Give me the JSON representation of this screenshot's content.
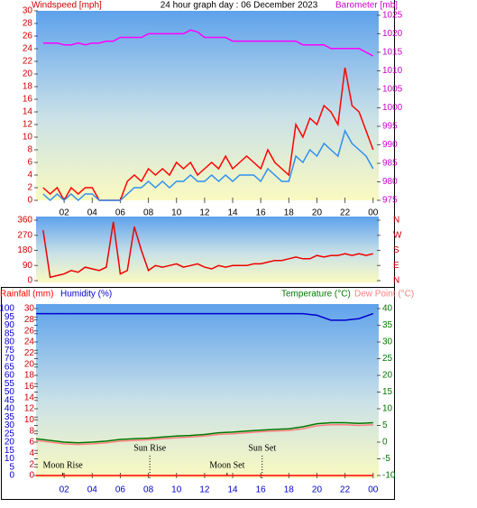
{
  "chart_data": [
    {
      "type": "line",
      "title": "24 hour graph day : 06 December 2023",
      "y_label": "Windspeed [mph]",
      "y2_label": "Barometer [mb]",
      "x": [
        0.5,
        1,
        1.5,
        2,
        2.5,
        3,
        3.5,
        4,
        4.5,
        5,
        5.5,
        6,
        6.5,
        7,
        7.5,
        8,
        8.5,
        9,
        9.5,
        10,
        10.5,
        11,
        11.5,
        12,
        12.5,
        13,
        13.5,
        14,
        14.5,
        15,
        15.5,
        16,
        16.5,
        17,
        17.5,
        18,
        18.5,
        19,
        19.5,
        20,
        20.5,
        21,
        21.5,
        22,
        22.5,
        23,
        23.5,
        24
      ],
      "xlim": [
        0,
        24.4
      ],
      "xticks": [
        {
          "value": 2,
          "label": "02"
        },
        {
          "value": 4,
          "label": "04"
        },
        {
          "value": 6,
          "label": "06"
        },
        {
          "value": 8,
          "label": "08"
        },
        10,
        12,
        14,
        16,
        18,
        20,
        22,
        {
          "value": 24,
          "label": "00"
        }
      ],
      "ylim": [
        0,
        30
      ],
      "yticks": [
        0,
        2,
        4,
        6,
        8,
        10,
        12,
        14,
        16,
        18,
        20,
        22,
        24,
        26,
        28,
        30
      ],
      "y2lim": [
        975,
        1026.2
      ],
      "y2ticks": [
        975,
        980,
        985,
        990,
        995,
        1000,
        1005,
        1010,
        1015,
        1020,
        1025
      ],
      "series": [
        {
          "color": "#ff0000",
          "values": [
            2,
            1,
            2,
            0,
            2,
            1,
            2,
            2,
            0,
            0,
            0,
            0,
            3,
            4,
            3,
            5,
            4,
            5,
            4,
            6,
            5,
            6,
            4,
            5,
            6,
            5,
            7,
            5,
            6,
            7,
            6,
            5,
            8,
            6,
            5,
            4,
            12,
            10,
            13,
            12,
            15,
            14,
            12,
            21,
            15,
            14,
            11,
            8
          ]
        },
        {
          "color": "#2f8ff0",
          "values": [
            1,
            0,
            1,
            0,
            1,
            0,
            1,
            1,
            0,
            0,
            0,
            0,
            1,
            2,
            2,
            3,
            2,
            3,
            2,
            3,
            3,
            4,
            3,
            3,
            4,
            3,
            4,
            3,
            4,
            4,
            4,
            3,
            5,
            4,
            3,
            3,
            7,
            6,
            8,
            7,
            9,
            8,
            7,
            11,
            9,
            8,
            7,
            5
          ]
        },
        {
          "color": "#ff00ff",
          "axis": "y2",
          "values": [
            1017.5,
            1017.5,
            1017.5,
            1017,
            1017,
            1017.5,
            1017,
            1017.5,
            1017.5,
            1018,
            1018,
            1019,
            1019,
            1019,
            1019,
            1020,
            1020,
            1020,
            1020,
            1020,
            1020,
            1021,
            1020.5,
            1019,
            1019,
            1019,
            1019,
            1018,
            1018,
            1018,
            1018,
            1018,
            1018,
            1018,
            1018,
            1018,
            1018,
            1017,
            1017,
            1017,
            1017,
            1016,
            1016,
            1016,
            1016,
            1016,
            1015,
            1014
          ]
        }
      ]
    },
    {
      "type": "line",
      "x": [
        0.5,
        1,
        1.5,
        2,
        2.5,
        3,
        3.5,
        4,
        4.5,
        5,
        5.5,
        6,
        6.5,
        7,
        7.5,
        8,
        8.5,
        9,
        9.5,
        10,
        10.5,
        11,
        11.5,
        12,
        12.5,
        13,
        13.5,
        14,
        14.5,
        15,
        15.5,
        16,
        16.5,
        17,
        17.5,
        18,
        18.5,
        19,
        19.5,
        20,
        20.5,
        21,
        21.5,
        22,
        22.5,
        23,
        23.5,
        24
      ],
      "xlim": [
        0,
        24.4
      ],
      "ylim": [
        0,
        360
      ],
      "yticks": [
        0,
        90,
        180,
        270,
        360
      ],
      "y2lim": [
        0,
        360
      ],
      "y2ticks": [
        {
          "value": 0,
          "label": "N"
        },
        {
          "value": 90,
          "label": "E"
        },
        {
          "value": 180,
          "label": "S"
        },
        {
          "value": 270,
          "label": "W"
        },
        {
          "value": 360,
          "label": "N"
        }
      ],
      "series": [
        {
          "color": "#ee0000",
          "values": [
            300,
            20,
            30,
            40,
            60,
            50,
            80,
            70,
            60,
            80,
            350,
            40,
            60,
            320,
            180,
            60,
            90,
            80,
            90,
            100,
            80,
            90,
            100,
            80,
            70,
            90,
            80,
            90,
            90,
            90,
            100,
            100,
            110,
            120,
            120,
            130,
            140,
            130,
            130,
            150,
            140,
            150,
            150,
            160,
            150,
            160,
            150,
            160
          ]
        }
      ]
    },
    {
      "type": "line",
      "x": [
        0,
        1,
        2,
        3,
        4,
        5,
        6,
        7,
        8,
        9,
        10,
        11,
        12,
        13,
        14,
        15,
        16,
        17,
        18,
        19,
        20,
        21,
        22,
        23,
        24
      ],
      "xlim": [
        0,
        24.4
      ],
      "xticks": [
        {
          "value": 2,
          "label": "02"
        },
        {
          "value": 4,
          "label": "04"
        },
        {
          "value": 6,
          "label": "06"
        },
        {
          "value": 8,
          "label": "08"
        },
        10,
        12,
        14,
        16,
        18,
        20,
        22,
        {
          "value": 24,
          "label": "00"
        }
      ],
      "ylim": [
        0,
        30
      ],
      "yticks": [
        0,
        2,
        4,
        6,
        8,
        10,
        12,
        14,
        16,
        18,
        20,
        22,
        24,
        26,
        28,
        30
      ],
      "y2lim": [
        -10,
        40
      ],
      "y2ticks": [
        -10,
        -5,
        0,
        5,
        10,
        15,
        20,
        25,
        30,
        35,
        40
      ],
      "y3lim": [
        0,
        100
      ],
      "y3ticks": [
        0,
        5,
        10,
        15,
        20,
        25,
        30,
        35,
        40,
        45,
        50,
        55,
        60,
        65,
        70,
        75,
        80,
        85,
        90,
        95,
        100
      ],
      "series": [
        {
          "name": "Rainfall (mm)",
          "color": "#ff0000",
          "values": [
            0,
            0,
            0,
            0,
            0,
            0,
            0,
            0,
            0,
            0,
            0,
            0,
            0,
            0,
            0,
            0,
            0,
            0,
            0,
            0,
            0,
            0,
            0,
            0,
            0
          ]
        },
        {
          "name": "Humidity (%)",
          "color": "#0000cc",
          "axis": "y3",
          "values": [
            97,
            97,
            97,
            97,
            97,
            97,
            97,
            97,
            97,
            97,
            97,
            97,
            97,
            97,
            97,
            97,
            97,
            97,
            97,
            97,
            96,
            93,
            93,
            94,
            97
          ]
        },
        {
          "name": "Temperature (°C)",
          "color": "#007700",
          "axis": "y2",
          "values": [
            1,
            0.5,
            0,
            -0.2,
            0,
            0.3,
            0.8,
            1,
            1.2,
            1.5,
            1.8,
            2,
            2.3,
            2.8,
            3,
            3.3,
            3.6,
            3.8,
            4,
            4.6,
            5.5,
            5.8,
            5.8,
            5.6,
            5.8
          ]
        },
        {
          "name": "Dew Point (°C)",
          "color": "#ff8080",
          "axis": "y2",
          "values": [
            0.5,
            0,
            -0.5,
            -0.7,
            -0.5,
            -0.2,
            0.3,
            0.5,
            0.7,
            1,
            1.3,
            1.5,
            1.8,
            2.3,
            2.5,
            2.8,
            3.1,
            3.3,
            3.5,
            4,
            4.9,
            5.2,
            5.2,
            5,
            5.2
          ]
        }
      ],
      "sun_events": [
        {
          "label": "Sun Rise",
          "x": 8.1
        },
        {
          "label": "Sun Set",
          "x": 16.1
        }
      ],
      "moon_events": [
        {
          "label": "Moon Rise",
          "x": 1.9
        },
        {
          "label": "Moon Set",
          "x": 13.6
        }
      ]
    }
  ]
}
